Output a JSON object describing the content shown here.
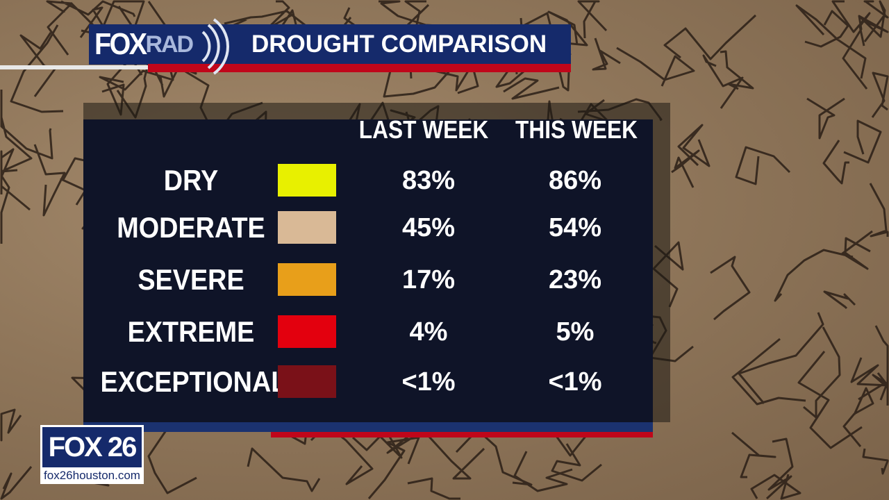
{
  "header": {
    "logo_fox": "FOX",
    "logo_rad": "RAD",
    "title": "DROUGHT COMPARISON"
  },
  "table": {
    "columns": [
      "LAST WEEK",
      "THIS WEEK"
    ],
    "rows": [
      {
        "label": "DRY",
        "color": "#e8f000",
        "last_week": "83%",
        "this_week": "86%"
      },
      {
        "label": "MODERATE",
        "color": "#d9b996",
        "last_week": "45%",
        "this_week": "54%"
      },
      {
        "label": "SEVERE",
        "color": "#e89f1a",
        "last_week": "17%",
        "this_week": "23%"
      },
      {
        "label": "EXTREME",
        "color": "#e3000e",
        "last_week": "4%",
        "this_week": "5%"
      },
      {
        "label": "EXCEPTIONAL",
        "color": "#7a1118",
        "last_week": "<1%",
        "this_week": "<1%"
      }
    ]
  },
  "station": {
    "logo": "FOX 26",
    "url": "fox26houston.com"
  },
  "colors": {
    "navy": "#152a6b",
    "red": "#c0061a",
    "panel": "#0f1428"
  }
}
